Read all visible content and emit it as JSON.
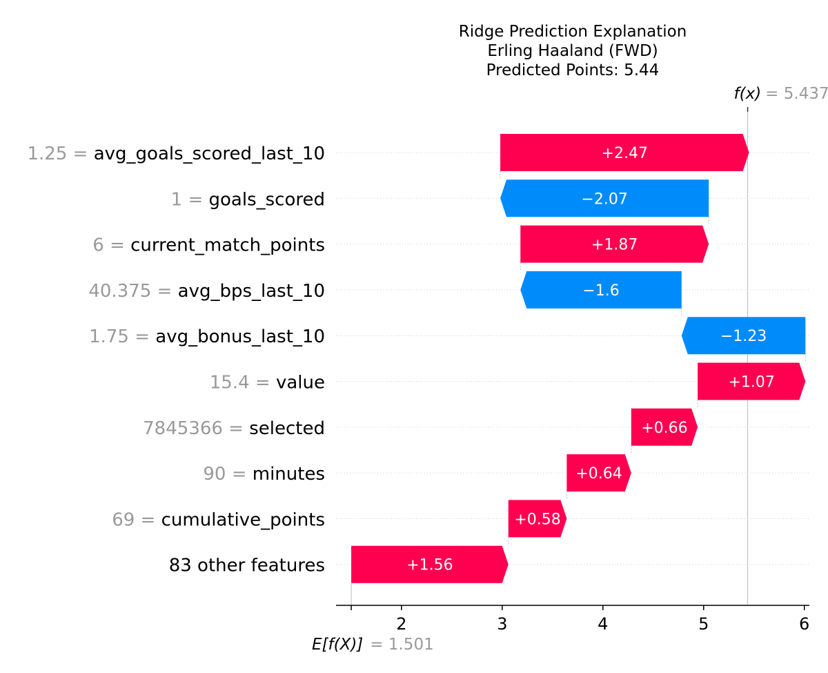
{
  "chart_data": {
    "type": "waterfall",
    "title_lines": [
      "Ridge Prediction Explanation",
      "Erling Haaland (FWD)",
      "Predicted Points: 5.44"
    ],
    "base_value": 1.501,
    "base_label": "E[f(X)]",
    "base_value_text": "= 1.501",
    "output_value": 5.437,
    "output_label": "f(x)",
    "output_value_text": "= 5.437",
    "xlim": [
      1.35,
      6.05
    ],
    "xticks": [
      2,
      3,
      4,
      5,
      6
    ],
    "colors": {
      "positive": "#ff0051",
      "negative": "#008bfb",
      "feature_value": "#999999",
      "grid": "#cccccc"
    },
    "features": [
      {
        "value": "1.25",
        "name": "avg_goals_scored_last_10",
        "contribution": 2.47,
        "label": "+2.47"
      },
      {
        "value": "1",
        "name": "goals_scored",
        "contribution": -2.07,
        "label": "−2.07"
      },
      {
        "value": "6",
        "name": "current_match_points",
        "contribution": 1.87,
        "label": "+1.87"
      },
      {
        "value": "40.375",
        "name": "avg_bps_last_10",
        "contribution": -1.6,
        "label": "−1.6"
      },
      {
        "value": "1.75",
        "name": "avg_bonus_last_10",
        "contribution": -1.23,
        "label": "−1.23"
      },
      {
        "value": "15.4",
        "name": "value",
        "contribution": 1.07,
        "label": "+1.07"
      },
      {
        "value": "7845366",
        "name": "selected",
        "contribution": 0.66,
        "label": "+0.66"
      },
      {
        "value": "90",
        "name": "minutes",
        "contribution": 0.64,
        "label": "+0.64"
      },
      {
        "value": "69",
        "name": "cumulative_points",
        "contribution": 0.58,
        "label": "+0.58"
      },
      {
        "value": "",
        "name": "83 other features",
        "contribution": 1.56,
        "label": "+1.56"
      }
    ]
  }
}
